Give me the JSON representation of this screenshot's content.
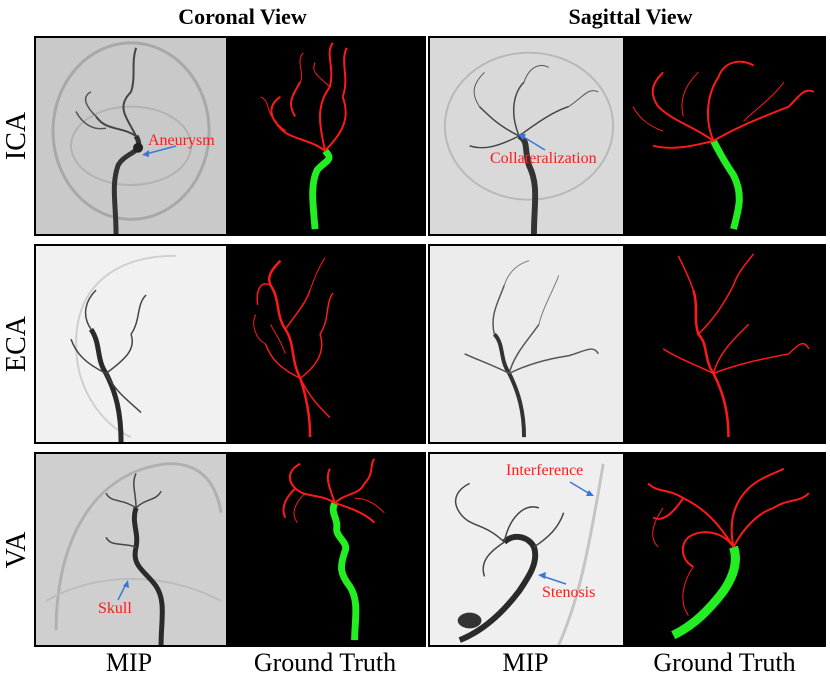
{
  "headers": {
    "coronal": "Coronal View",
    "sagittal": "Sagittal View"
  },
  "rows": {
    "ica": "ICA",
    "eca": "ECA",
    "va": "VA"
  },
  "footers": {
    "mip_left": "MIP",
    "gt_left": "Ground Truth",
    "mip_right": "MIP",
    "gt_right": "Ground Truth"
  },
  "annotations": {
    "aneurysm": "Aneurysm",
    "collateralization": "Collateralization",
    "skull": "Skull",
    "interference": "Interference",
    "stenosis": "Stenosis"
  },
  "colors": {
    "vessel_gt": "#ff1a1a",
    "main_artery_gt": "#22ee22",
    "annotation": "#ff1a1a",
    "arrow": "#3a78d8"
  }
}
